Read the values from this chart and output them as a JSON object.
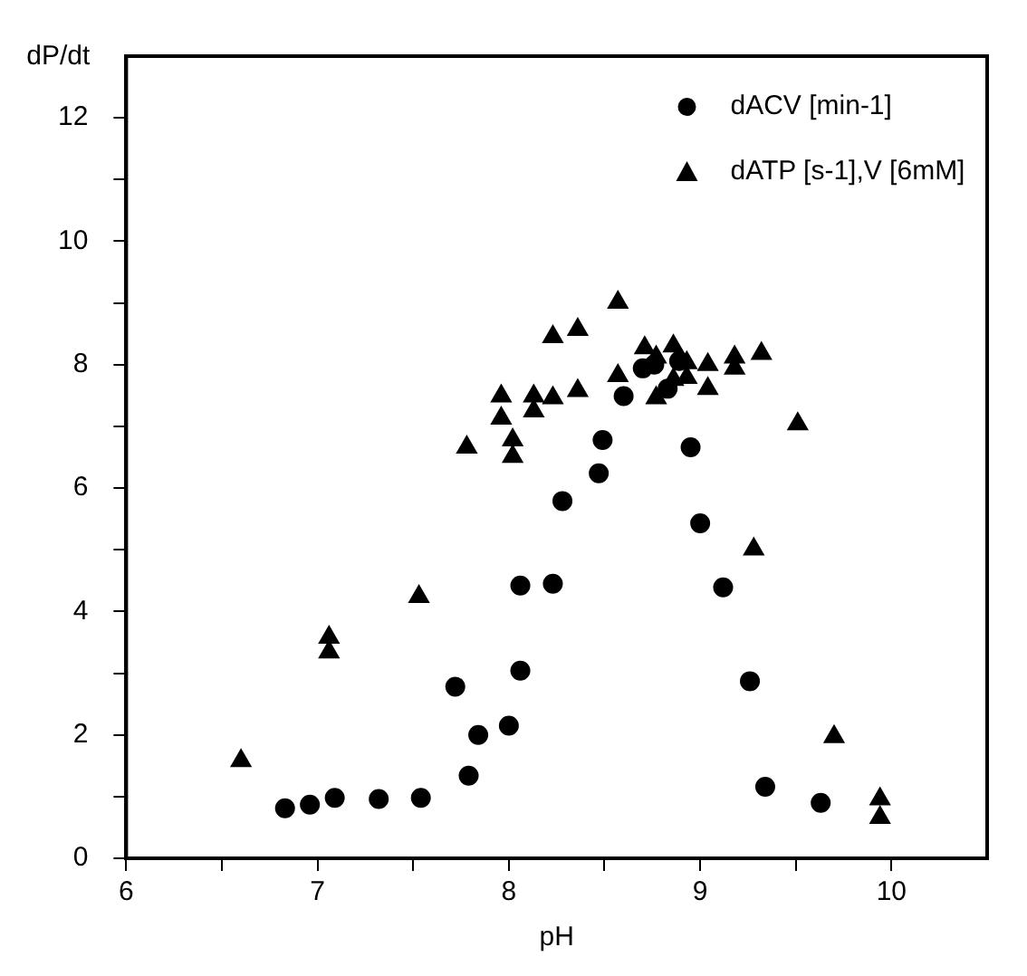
{
  "chart_data": {
    "type": "scatter",
    "xlabel": "pH",
    "ylabel": "dP/dt",
    "xlim": [
      6,
      10.5
    ],
    "xticks": [
      6,
      {
        "value": 6.5,
        "label": null
      },
      7,
      {
        "value": 7.5,
        "label": null
      },
      8,
      {
        "value": 8.5,
        "label": null
      },
      9,
      {
        "value": 9.5,
        "label": null
      },
      10
    ],
    "ylim": [
      0,
      13
    ],
    "yticks": [
      0,
      {
        "value": 1,
        "label": null
      },
      2,
      {
        "value": 3,
        "label": null
      },
      4,
      {
        "value": 5,
        "label": null
      },
      6,
      {
        "value": 7,
        "label": null
      },
      8,
      {
        "value": 9,
        "label": null
      },
      10,
      {
        "value": 11,
        "label": null
      },
      12
    ],
    "grid": false,
    "legend": "top right",
    "series": [
      {
        "name": "dACV [min-1]",
        "color": "#000000",
        "marker": "circle",
        "x": [
          6.83,
          6.96,
          7.09,
          7.32,
          7.54,
          7.72,
          7.79,
          7.84,
          8.0,
          8.06,
          8.06,
          8.23,
          8.28,
          8.47,
          8.49,
          8.6,
          8.7,
          8.76,
          8.83,
          8.89,
          8.95,
          9.0,
          9.12,
          9.26,
          9.34,
          9.63
        ],
        "values": [
          0.81,
          0.87,
          0.98,
          0.96,
          0.98,
          2.78,
          1.34,
          2.0,
          2.15,
          3.04,
          4.42,
          4.45,
          5.79,
          6.24,
          6.78,
          7.49,
          7.94,
          8.0,
          7.61,
          8.06,
          6.66,
          5.43,
          4.39,
          2.87,
          1.16,
          0.9
        ]
      },
      {
        "name": "dATP [s-1],V [6mM]",
        "color": "#000000",
        "marker": "triangle",
        "x": [
          6.6,
          7.06,
          7.06,
          7.53,
          7.78,
          7.96,
          7.96,
          8.02,
          8.02,
          8.13,
          8.13,
          8.23,
          8.23,
          8.36,
          8.36,
          8.57,
          8.57,
          8.71,
          8.77,
          8.77,
          8.86,
          8.86,
          8.93,
          8.93,
          9.04,
          9.04,
          9.18,
          9.18,
          9.32,
          9.51,
          9.28,
          9.7,
          9.94,
          9.94
        ],
        "values": [
          1.58,
          3.58,
          3.34,
          4.24,
          6.66,
          7.49,
          7.13,
          6.78,
          6.51,
          7.49,
          7.25,
          8.45,
          7.46,
          8.57,
          7.58,
          9.01,
          7.82,
          8.27,
          7.46,
          8.12,
          8.3,
          7.76,
          8.03,
          7.79,
          8.0,
          7.61,
          8.12,
          7.94,
          8.18,
          7.04,
          5.01,
          1.97,
          0.96,
          0.66
        ]
      }
    ]
  }
}
